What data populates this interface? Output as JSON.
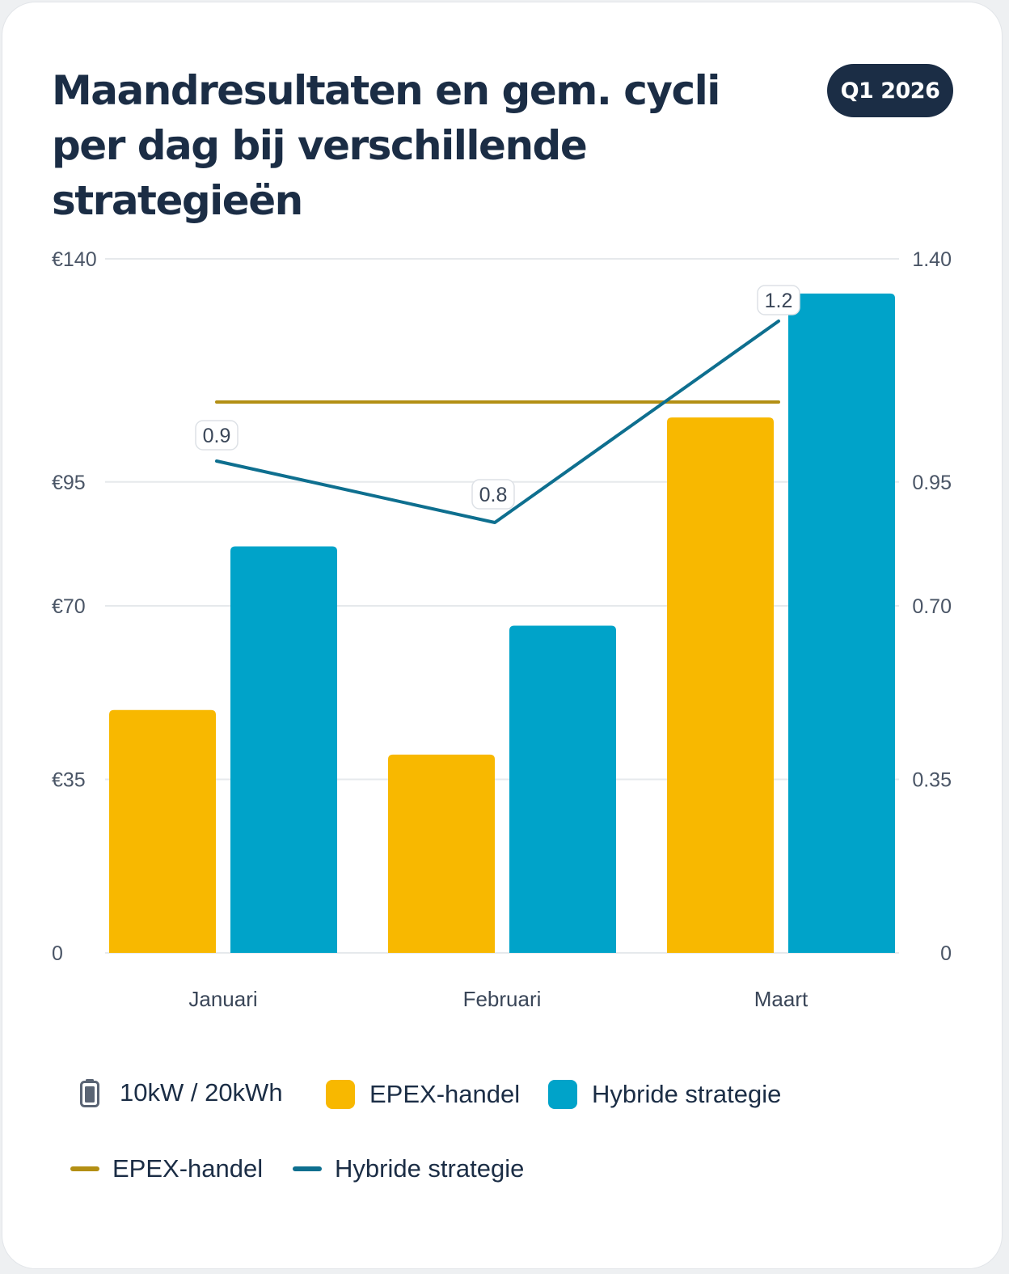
{
  "header": {
    "title": "Maandresultaten en gem. cycli per dag bij verschillende strategieën",
    "badge": "Q1 2026"
  },
  "colors": {
    "epex_bar": "#F8B800",
    "hybrid_bar": "#00A3C9",
    "epex_line": "#B38F14",
    "hybrid_line": "#0E6F8F",
    "grid": "#e6e9ec"
  },
  "chart_data": {
    "type": "bar",
    "categories": [
      "Januari",
      "Februari",
      "Maart"
    ],
    "series": [
      {
        "name": "EPEX-handel",
        "kind": "bar",
        "axis": "left",
        "values": [
          49,
          40,
          108
        ]
      },
      {
        "name": "Hybride strategie",
        "kind": "bar",
        "axis": "left",
        "values": [
          82,
          66,
          133
        ]
      },
      {
        "name": "EPEX-handel",
        "kind": "line",
        "axis": "right",
        "values": [
          1.0,
          1.0,
          1.0
        ]
      },
      {
        "name": "Hybride strategie",
        "kind": "line",
        "axis": "right",
        "values": [
          0.9,
          0.8,
          1.2
        ],
        "labels": [
          "0.9",
          "0.8",
          "1.2"
        ]
      }
    ],
    "y_left": {
      "ticks": [
        "0",
        "€35",
        "€70",
        "€95",
        "€140"
      ],
      "tick_values": [
        0,
        35,
        70,
        95,
        140
      ],
      "ylim": [
        0,
        140
      ]
    },
    "y_right": {
      "ticks": [
        "0",
        "0.35",
        "0.70",
        "0.95",
        "1.40"
      ],
      "tick_values": [
        0,
        0.35,
        0.7,
        0.95,
        1.4
      ],
      "ylim": [
        0,
        1.4
      ]
    },
    "grid": true,
    "legend_position": "bottom"
  },
  "legend": {
    "battery_label": "10kW / 20kWh",
    "battery_icon": "battery-icon",
    "items": [
      {
        "label": "EPEX-handel"
      },
      {
        "label": "Hybride strategie"
      },
      {
        "label": "EPEX-handel"
      },
      {
        "label": "Hybride strategie"
      }
    ]
  }
}
